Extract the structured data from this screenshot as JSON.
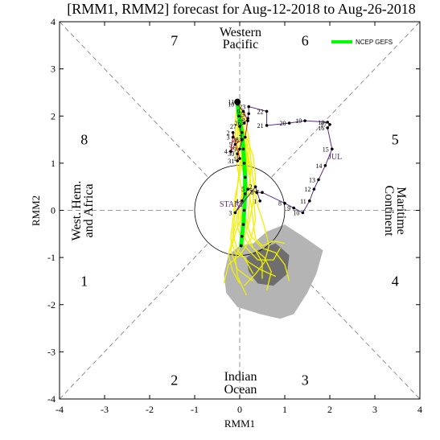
{
  "chart_data": {
    "type": "line",
    "title": "[RMM1, RMM2] forecast for Aug-12-2018 to Aug-26-2018",
    "xlabel": "RMM1",
    "ylabel": "RMM2",
    "xlim": [
      -4,
      4
    ],
    "ylim": [
      -4,
      4
    ],
    "xticks": [
      "-4",
      "-3",
      "-2",
      "-1",
      "0",
      "1",
      "2",
      "3",
      "4"
    ],
    "yticks": [
      "-4",
      "-3",
      "-2",
      "-1",
      "0",
      "1",
      "2",
      "3",
      "4"
    ],
    "grid": false,
    "legend_position": "top-right",
    "phase_labels": [
      {
        "label": "1",
        "x": -3.45,
        "y": -1.5
      },
      {
        "label": "2",
        "x": -1.45,
        "y": -3.6
      },
      {
        "label": "3",
        "x": 1.45,
        "y": -3.6
      },
      {
        "label": "4",
        "x": 3.45,
        "y": -1.5
      },
      {
        "label": "5",
        "x": 3.45,
        "y": 1.5
      },
      {
        "label": "6",
        "x": 1.45,
        "y": 3.6
      },
      {
        "label": "7",
        "x": -1.45,
        "y": 3.6
      },
      {
        "label": "8",
        "x": -3.45,
        "y": 1.5
      }
    ],
    "region_labels": {
      "top": [
        "Western",
        "Pacific"
      ],
      "bottom": [
        "Indian",
        "Ocean"
      ],
      "left": [
        "West. Hem.",
        "and Africa"
      ],
      "right": [
        "Maritime",
        "Continent"
      ]
    },
    "observed": {
      "name": "JUL",
      "start_label": "START",
      "month_labels": [
        {
          "text": "JUL",
          "x": 2.15,
          "y": 1.15
        }
      ],
      "points": [
        {
          "day": "1",
          "x": 0.45,
          "y": 0.2
        },
        {
          "day": "2",
          "x": 0.35,
          "y": 0.5
        },
        {
          "day": "3",
          "x": -0.1,
          "y": -0.05
        },
        {
          "day": "4",
          "x": 0.05,
          "y": 0.2
        },
        {
          "day": "5",
          "x": 0.18,
          "y": 0.45
        },
        {
          "day": "6",
          "x": 0.38,
          "y": 0.38
        },
        {
          "day": "7",
          "x": 0.5,
          "y": 0.38
        },
        {
          "day": "8",
          "x": 1.0,
          "y": 0.15
        },
        {
          "day": "9",
          "x": 1.2,
          "y": 0.05
        },
        {
          "day": "10",
          "x": 1.4,
          "y": -0.05
        },
        {
          "day": "11",
          "x": 1.55,
          "y": 0.2
        },
        {
          "day": "12",
          "x": 1.65,
          "y": 0.45
        },
        {
          "day": "13",
          "x": 1.75,
          "y": 0.65
        },
        {
          "day": "14",
          "x": 1.9,
          "y": 0.95
        },
        {
          "day": "15",
          "x": 2.05,
          "y": 1.3
        },
        {
          "day": "16",
          "x": 1.95,
          "y": 1.75
        },
        {
          "day": "17",
          "x": 2.0,
          "y": 1.82
        },
        {
          "day": "18",
          "x": 1.95,
          "y": 1.87
        },
        {
          "day": "19",
          "x": 1.45,
          "y": 1.9
        },
        {
          "day": "20",
          "x": 1.1,
          "y": 1.85
        },
        {
          "day": "21",
          "x": 0.6,
          "y": 1.8
        },
        {
          "day": "22",
          "x": 0.6,
          "y": 2.1
        },
        {
          "day": "23",
          "x": 0.2,
          "y": 2.2
        },
        {
          "day": "24",
          "x": 0.2,
          "y": 2.05
        },
        {
          "day": "25",
          "x": 0.18,
          "y": 1.95
        },
        {
          "day": "26",
          "x": 0.1,
          "y": 1.85
        },
        {
          "day": "27",
          "x": 0.0,
          "y": 1.78
        },
        {
          "day": "28",
          "x": 0.05,
          "y": 1.5
        },
        {
          "day": "29",
          "x": 0.0,
          "y": 1.3
        },
        {
          "day": "30",
          "x": -0.05,
          "y": 1.2
        },
        {
          "day": "31",
          "x": -0.05,
          "y": 1.05
        }
      ]
    },
    "recent_red": {
      "points": [
        {
          "day": "1",
          "x": 0.0,
          "y": 1.1
        },
        {
          "day": "2",
          "x": -0.15,
          "y": 1.65
        },
        {
          "day": "3",
          "x": -0.15,
          "y": 1.55
        },
        {
          "day": "4",
          "x": -0.2,
          "y": 1.25
        },
        {
          "day": "5",
          "x": -0.1,
          "y": 1.4
        },
        {
          "day": "6",
          "x": 0.05,
          "y": 1.5
        },
        {
          "day": "7",
          "x": 0.12,
          "y": 1.55
        },
        {
          "day": "8",
          "x": 0.18,
          "y": 1.9
        },
        {
          "day": "9",
          "x": 0.08,
          "y": 2.1
        },
        {
          "day": "10",
          "x": -0.05,
          "y": 2.25
        },
        {
          "day": "11",
          "x": -0.05,
          "y": 2.3
        }
      ],
      "current": {
        "x": -0.05,
        "y": 2.3
      }
    },
    "ensemble_mean": {
      "name": "NCEP GEFS",
      "color": "#00ff00",
      "points": [
        {
          "x": -0.05,
          "y": 2.3
        },
        {
          "x": -0.02,
          "y": 2.0
        },
        {
          "x": 0.05,
          "y": 1.65
        },
        {
          "x": 0.08,
          "y": 1.3
        },
        {
          "x": 0.1,
          "y": 1.0
        },
        {
          "x": 0.12,
          "y": 0.7
        },
        {
          "x": 0.12,
          "y": 0.35
        },
        {
          "x": 0.1,
          "y": 0.0
        },
        {
          "x": 0.08,
          "y": -0.3
        },
        {
          "x": 0.05,
          "y": -0.55
        },
        {
          "x": 0.03,
          "y": -0.75
        }
      ]
    },
    "ensemble_color": "#f0f000",
    "ensemble_members": [
      [
        [
          -0.05,
          2.3
        ],
        [
          0.0,
          1.9
        ],
        [
          0.1,
          1.5
        ],
        [
          0.2,
          1.0
        ],
        [
          0.25,
          0.5
        ],
        [
          0.2,
          0.0
        ],
        [
          0.15,
          -0.45
        ],
        [
          0.3,
          -0.8
        ],
        [
          0.55,
          -1.0
        ],
        [
          0.7,
          -1.3
        ],
        [
          0.6,
          -1.7
        ]
      ],
      [
        [
          -0.05,
          2.3
        ],
        [
          -0.05,
          1.9
        ],
        [
          0.0,
          1.5
        ],
        [
          0.0,
          1.0
        ],
        [
          -0.05,
          0.5
        ],
        [
          -0.1,
          0.0
        ],
        [
          -0.15,
          -0.5
        ],
        [
          -0.05,
          -0.85
        ],
        [
          0.2,
          -1.1
        ],
        [
          0.45,
          -1.25
        ],
        [
          0.8,
          -1.4
        ]
      ],
      [
        [
          -0.05,
          2.3
        ],
        [
          0.02,
          1.95
        ],
        [
          0.15,
          1.55
        ],
        [
          0.3,
          1.15
        ],
        [
          0.35,
          0.7
        ],
        [
          0.3,
          0.2
        ],
        [
          0.2,
          -0.3
        ],
        [
          0.05,
          -0.7
        ],
        [
          -0.1,
          -1.0
        ],
        [
          -0.05,
          -1.4
        ],
        [
          0.15,
          -1.8
        ]
      ],
      [
        [
          -0.05,
          2.3
        ],
        [
          -0.1,
          1.9
        ],
        [
          -0.1,
          1.4
        ],
        [
          -0.05,
          0.9
        ],
        [
          0.05,
          0.4
        ],
        [
          0.1,
          -0.1
        ],
        [
          0.25,
          -0.55
        ],
        [
          0.5,
          -0.8
        ],
        [
          0.8,
          -0.9
        ],
        [
          1.0,
          -1.15
        ],
        [
          1.1,
          -1.5
        ]
      ],
      [
        [
          -0.05,
          2.3
        ],
        [
          0.05,
          2.0
        ],
        [
          0.1,
          1.6
        ],
        [
          0.1,
          1.2
        ],
        [
          0.2,
          0.8
        ],
        [
          0.3,
          0.3
        ],
        [
          0.35,
          -0.2
        ],
        [
          0.25,
          -0.6
        ],
        [
          0.0,
          -0.95
        ],
        [
          -0.25,
          -1.15
        ],
        [
          -0.35,
          -1.55
        ]
      ],
      [
        [
          -0.05,
          2.3
        ],
        [
          0.0,
          2.0
        ],
        [
          0.05,
          1.7
        ],
        [
          0.15,
          1.3
        ],
        [
          0.25,
          0.9
        ],
        [
          0.2,
          0.4
        ],
        [
          0.05,
          -0.1
        ],
        [
          -0.1,
          -0.5
        ],
        [
          -0.2,
          -0.85
        ],
        [
          -0.05,
          -1.25
        ],
        [
          0.3,
          -1.5
        ]
      ],
      [
        [
          -0.05,
          2.3
        ],
        [
          0.05,
          1.9
        ],
        [
          0.15,
          1.45
        ],
        [
          0.15,
          1.0
        ],
        [
          0.1,
          0.55
        ],
        [
          0.0,
          0.1
        ],
        [
          -0.05,
          -0.35
        ],
        [
          0.1,
          -0.75
        ],
        [
          0.4,
          -1.05
        ],
        [
          0.75,
          -1.05
        ],
        [
          0.9,
          -0.8
        ]
      ],
      [
        [
          -0.05,
          2.3
        ],
        [
          -0.05,
          2.0
        ],
        [
          0.0,
          1.6
        ],
        [
          0.05,
          1.2
        ],
        [
          0.0,
          0.75
        ],
        [
          -0.1,
          0.3
        ],
        [
          -0.15,
          -0.2
        ],
        [
          -0.2,
          -0.6
        ],
        [
          -0.1,
          -0.9
        ],
        [
          0.1,
          -1.0
        ],
        [
          0.3,
          -1.35
        ]
      ],
      [
        [
          -0.05,
          2.3
        ],
        [
          0.1,
          2.0
        ],
        [
          0.2,
          1.55
        ],
        [
          0.25,
          1.05
        ],
        [
          0.3,
          0.6
        ],
        [
          0.4,
          0.1
        ],
        [
          0.55,
          -0.35
        ],
        [
          0.65,
          -0.75
        ],
        [
          0.55,
          -1.1
        ],
        [
          0.35,
          -1.35
        ],
        [
          0.1,
          -1.6
        ]
      ],
      [
        [
          -0.05,
          2.3
        ],
        [
          0.0,
          1.95
        ],
        [
          0.05,
          1.55
        ],
        [
          0.05,
          1.1
        ],
        [
          0.1,
          0.65
        ],
        [
          0.05,
          0.2
        ],
        [
          0.0,
          -0.3
        ],
        [
          0.15,
          -0.65
        ],
        [
          0.35,
          -0.85
        ],
        [
          0.5,
          -1.1
        ],
        [
          0.5,
          -1.45
        ]
      ],
      [
        [
          -0.05,
          2.3
        ],
        [
          -0.05,
          1.85
        ],
        [
          -0.05,
          1.45
        ],
        [
          0.0,
          1.05
        ],
        [
          0.15,
          0.6
        ],
        [
          0.25,
          0.15
        ],
        [
          0.3,
          -0.25
        ],
        [
          0.35,
          -0.6
        ],
        [
          0.5,
          -0.75
        ],
        [
          0.75,
          -0.65
        ],
        [
          1.0,
          -0.7
        ]
      ],
      [
        [
          -0.05,
          2.3
        ],
        [
          0.0,
          2.0
        ],
        [
          0.1,
          1.65
        ],
        [
          0.2,
          1.25
        ],
        [
          0.15,
          0.8
        ],
        [
          0.05,
          0.35
        ],
        [
          -0.05,
          -0.1
        ],
        [
          -0.15,
          -0.55
        ],
        [
          -0.25,
          -0.95
        ],
        [
          -0.15,
          -1.3
        ],
        [
          0.0,
          -1.55
        ]
      ]
    ],
    "spread_outer": [
      [
        0.3,
        -0.7
      ],
      [
        0.6,
        -0.45
      ],
      [
        1.0,
        -0.3
      ],
      [
        1.4,
        -0.55
      ],
      [
        1.85,
        -0.85
      ],
      [
        1.7,
        -1.35
      ],
      [
        1.5,
        -1.75
      ],
      [
        1.2,
        -2.2
      ],
      [
        0.9,
        -2.3
      ],
      [
        0.45,
        -2.2
      ],
      [
        -0.05,
        -2.05
      ],
      [
        -0.3,
        -1.75
      ],
      [
        -0.35,
        -1.35
      ],
      [
        -0.25,
        -0.95
      ],
      [
        0.0,
        -0.75
      ]
    ],
    "spread_inner": [
      [
        0.4,
        -0.85
      ],
      [
        0.8,
        -0.7
      ],
      [
        1.1,
        -0.95
      ],
      [
        1.05,
        -1.35
      ],
      [
        0.75,
        -1.6
      ],
      [
        0.4,
        -1.55
      ],
      [
        0.2,
        -1.3
      ],
      [
        0.15,
        -1.0
      ]
    ]
  }
}
